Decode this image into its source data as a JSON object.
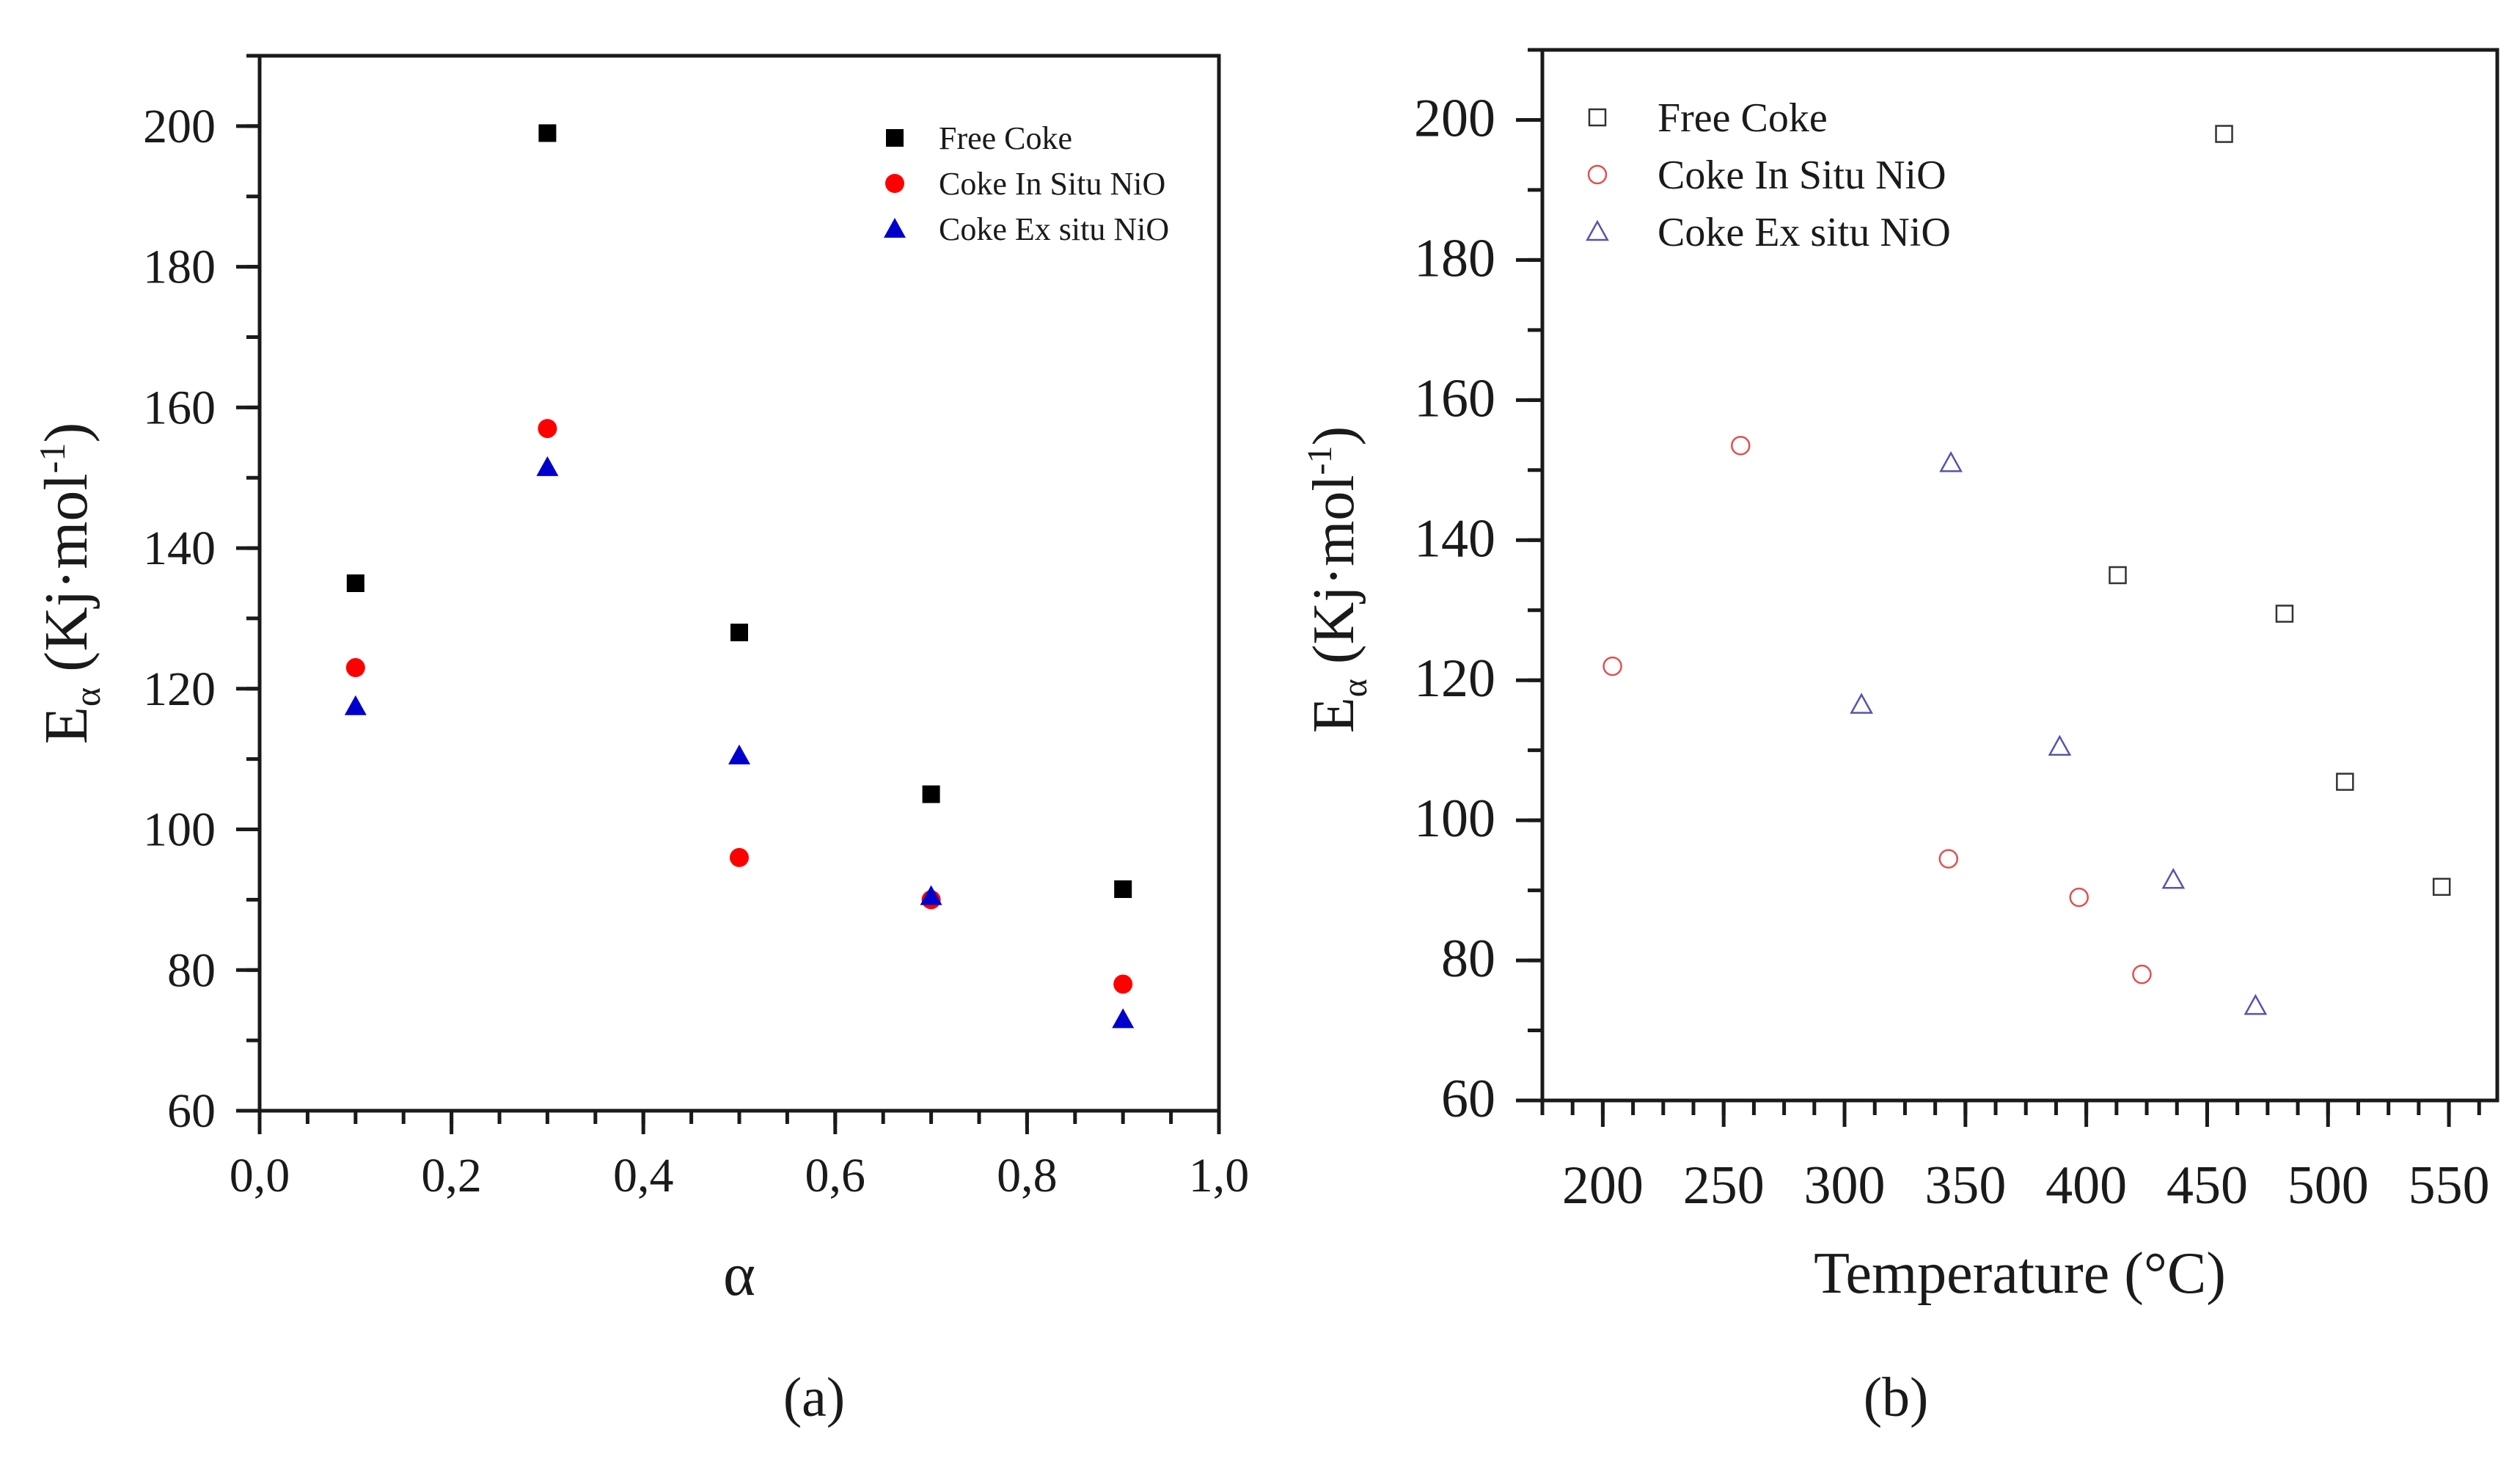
{
  "chart_data": [
    {
      "type": "scatter",
      "panel_label": "(a)",
      "xlabel": "α",
      "ylabel_main": "E",
      "ylabel_sub": "α",
      "ylabel_unit_open": " (Kj·mol",
      "ylabel_unit_sup": "-1",
      "ylabel_unit_close": ")",
      "xlim": [
        0,
        1.0
      ],
      "ylim": [
        60,
        210
      ],
      "x_ticks": [
        0.0,
        0.2,
        0.4,
        0.6,
        0.8,
        1.0
      ],
      "x_tick_labels": [
        "0,0",
        "0,2",
        "0,4",
        "0,6",
        "0,8",
        "1,0"
      ],
      "y_ticks": [
        60,
        80,
        100,
        120,
        140,
        160,
        180,
        200
      ],
      "y_tick_labels": [
        "60",
        "80",
        "100",
        "120",
        "140",
        "160",
        "180",
        "200"
      ],
      "legend_position": "top-right",
      "grid": false,
      "series": [
        {
          "name": "Free Coke",
          "marker": "filled-square",
          "color": "#000000",
          "points": [
            [
              0.1,
              135
            ],
            [
              0.3,
              199
            ],
            [
              0.5,
              128
            ],
            [
              0.7,
              105
            ],
            [
              0.9,
              91.5
            ]
          ]
        },
        {
          "name": "Coke In Situ NiO",
          "marker": "filled-circle",
          "color": "#ff0000",
          "points": [
            [
              0.1,
              123
            ],
            [
              0.3,
              157
            ],
            [
              0.5,
              96
            ],
            [
              0.7,
              90
            ],
            [
              0.9,
              78
            ]
          ]
        },
        {
          "name": "Coke Ex situ NiO",
          "marker": "filled-triangle",
          "color": "#0000cc",
          "points": [
            [
              0.1,
              117.5
            ],
            [
              0.3,
              151.5
            ],
            [
              0.5,
              110.5
            ],
            [
              0.7,
              90.5
            ],
            [
              0.9,
              73
            ]
          ]
        }
      ]
    },
    {
      "type": "scatter",
      "panel_label": "(b)",
      "xlabel": "Temperature (°C)",
      "ylabel_main": "E",
      "ylabel_sub": "α",
      "ylabel_unit_open": " (Kj·mol",
      "ylabel_unit_sup": "-1",
      "ylabel_unit_close": ")",
      "xlim": [
        175,
        570
      ],
      "ylim": [
        60,
        210
      ],
      "x_ticks": [
        200,
        250,
        300,
        350,
        400,
        450,
        500,
        550
      ],
      "x_tick_labels": [
        "200",
        "250",
        "300",
        "350",
        "400",
        "450",
        "500",
        "550"
      ],
      "y_ticks": [
        60,
        80,
        100,
        120,
        140,
        160,
        180,
        200
      ],
      "y_tick_labels": [
        "60",
        "80",
        "100",
        "120",
        "140",
        "160",
        "180",
        "200"
      ],
      "legend_position": "top-left",
      "grid": false,
      "series": [
        {
          "name": "Free Coke",
          "marker": "open-square",
          "color": "#333333",
          "points": [
            [
              457,
              198
            ],
            [
              413,
              135
            ],
            [
              482,
              129.5
            ],
            [
              507,
              105.5
            ],
            [
              547,
              90.5
            ]
          ]
        },
        {
          "name": "Coke In Situ NiO",
          "marker": "open-circle",
          "color": "#e05050",
          "points": [
            [
              257,
              153.5
            ],
            [
              204,
              122
            ],
            [
              343,
              94.5
            ],
            [
              397,
              89
            ],
            [
              423,
              78
            ]
          ]
        },
        {
          "name": "Coke Ex situ NiO",
          "marker": "open-triangle",
          "color": "#5555aa",
          "points": [
            [
              344,
              151
            ],
            [
              307,
              116.5
            ],
            [
              389,
              110.5
            ],
            [
              436,
              91.5
            ],
            [
              470,
              73.5
            ]
          ]
        }
      ]
    }
  ]
}
